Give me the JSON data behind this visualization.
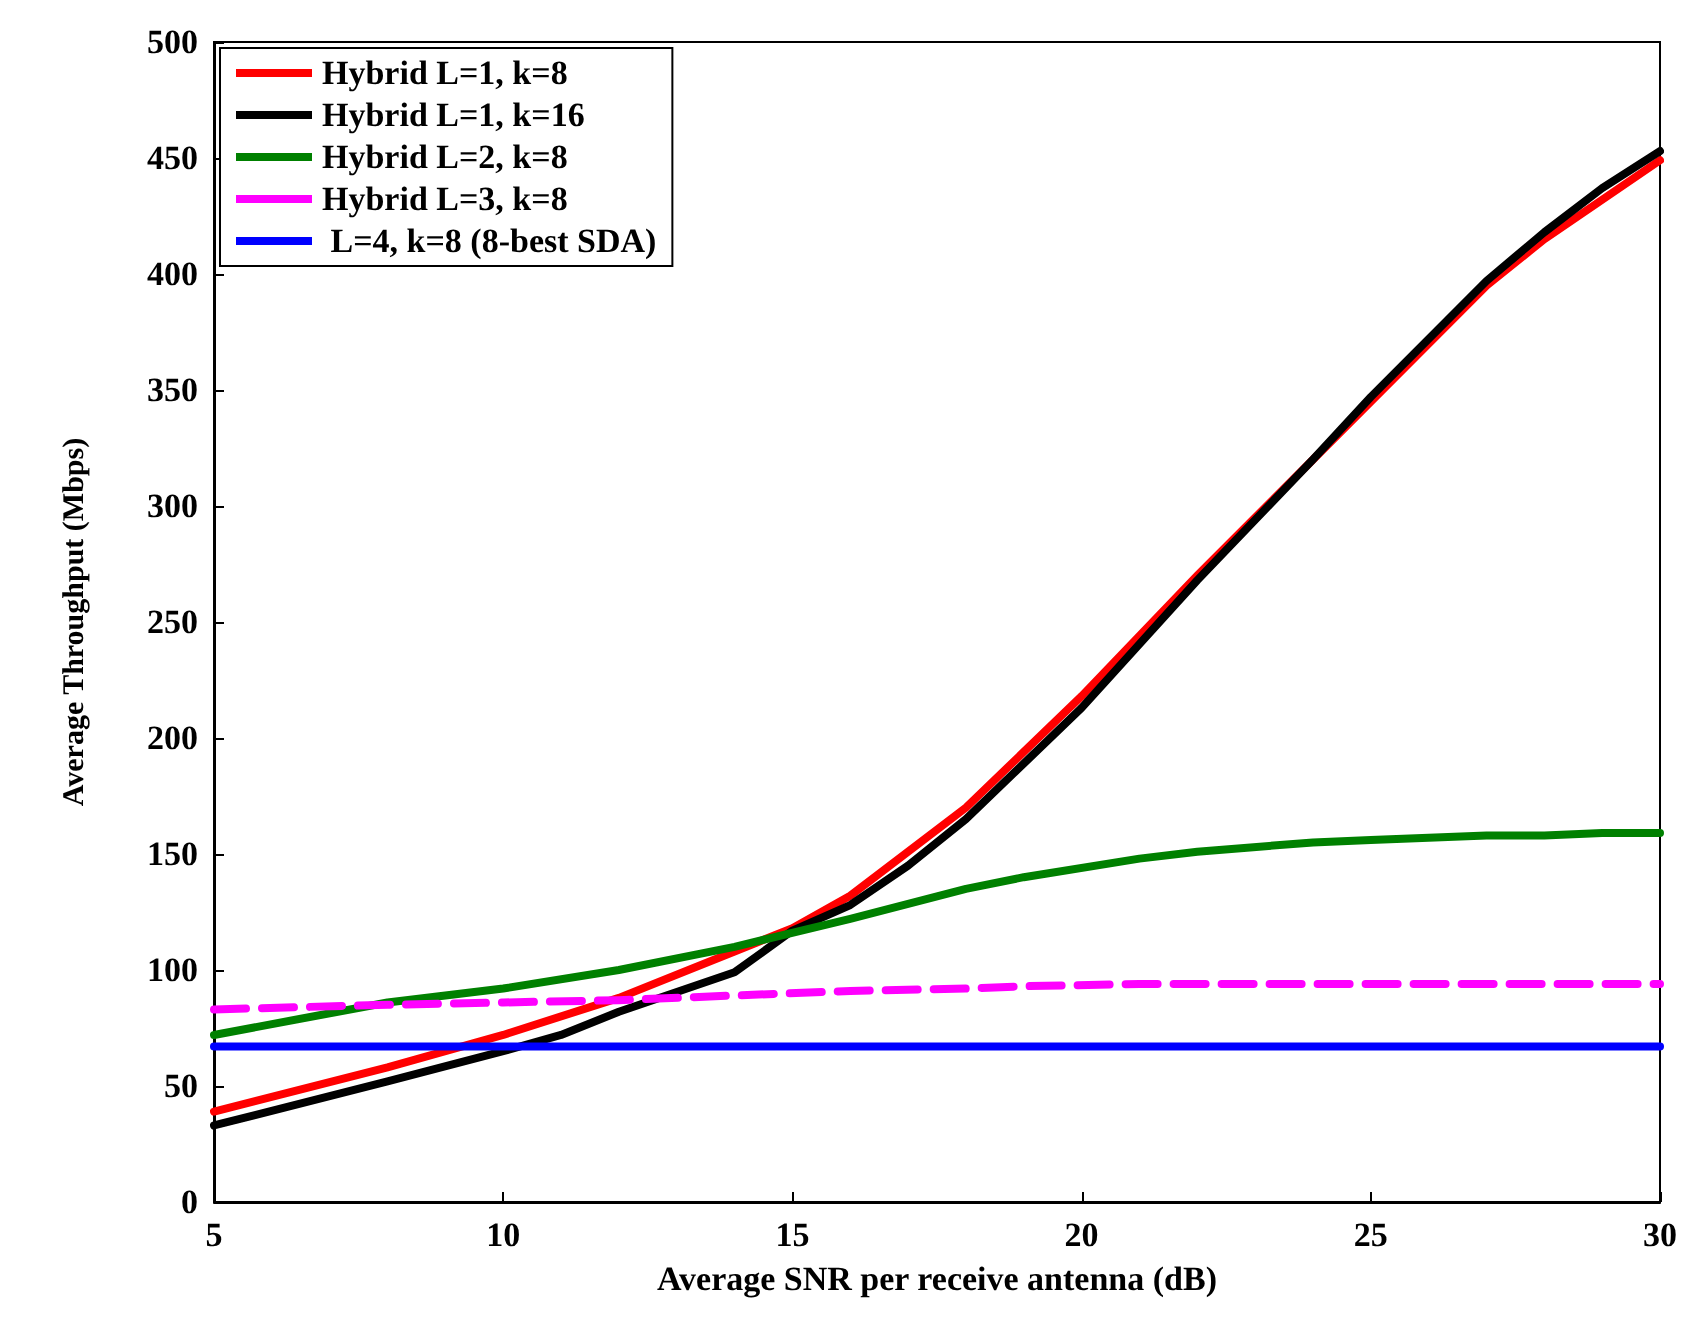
{
  "chart_data": {
    "type": "line",
    "xlabel": "Average SNR per receive antenna (dB)",
    "ylabel": "Average Throughput (Mbps)",
    "xlim": [
      5,
      30
    ],
    "xticks": [
      5,
      10,
      15,
      20,
      25,
      30
    ],
    "ylim": [
      0,
      500
    ],
    "yticks": [
      0,
      50,
      100,
      150,
      200,
      250,
      300,
      350,
      400,
      450,
      500
    ],
    "grid": false,
    "legend": "top left",
    "marker": "none",
    "line_style": "solid",
    "series": [
      {
        "name": "Hybrid L=1, k=8",
        "color": "#ff0000",
        "x": [
          5,
          8,
          10,
          12,
          14,
          15,
          16,
          18,
          20,
          22,
          24,
          25,
          27,
          28,
          29,
          30
        ],
        "values": [
          39,
          58,
          72,
          88,
          108,
          118,
          132,
          170,
          218,
          270,
          320,
          345,
          395,
          415,
          432,
          449
        ]
      },
      {
        "name": "Hybrid L=1, k=16",
        "color": "#000000",
        "x": [
          5,
          8,
          10,
          11,
          12,
          14,
          15,
          16,
          17,
          18,
          20,
          22,
          24,
          25,
          27,
          28,
          29,
          30
        ],
        "values": [
          33,
          52,
          65,
          72,
          82,
          99,
          117,
          128,
          145,
          165,
          213,
          268,
          320,
          347,
          397,
          418,
          437,
          453
        ]
      },
      {
        "name": "Hybrid L=2, k=8",
        "color": "#008000",
        "x": [
          5,
          8,
          10,
          12,
          14,
          16,
          18,
          19,
          21,
          22,
          24,
          25,
          27,
          28,
          29,
          30
        ],
        "values": [
          72,
          86,
          92,
          100,
          110,
          122,
          135,
          140,
          148,
          151,
          155,
          156,
          158,
          158,
          159,
          159
        ]
      },
      {
        "name": "Hybrid L=3, k=8",
        "color": "#ff00ff",
        "line_style": "dashed",
        "x": [
          5,
          8,
          10,
          12,
          14,
          16,
          18,
          19,
          21,
          30
        ],
        "values": [
          83,
          85,
          86,
          87,
          89,
          91,
          92,
          93,
          94,
          94
        ]
      },
      {
        "name": " L=4, k=8 (8-best SDA)",
        "color": "#0000ff",
        "x": [
          5,
          30
        ],
        "values": [
          67,
          67
        ]
      }
    ]
  }
}
